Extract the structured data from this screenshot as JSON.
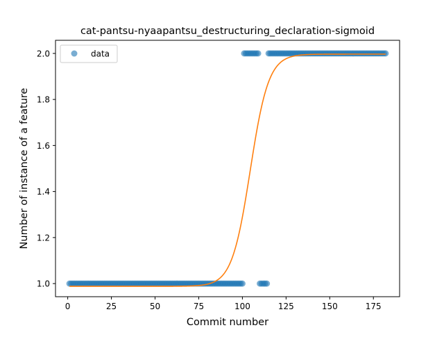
{
  "chart_data": {
    "type": "scatter",
    "title": "cat-pantsu-nyaapantsu_destructuring_declaration-sigmoid",
    "xlabel": "Commit number",
    "ylabel": "Number of instance of a feature",
    "xlim": [
      -7,
      190
    ],
    "ylim": [
      0.943,
      2.057
    ],
    "xticks": [
      0,
      25,
      50,
      75,
      100,
      125,
      150,
      175
    ],
    "yticks": [
      1.0,
      1.2,
      1.4,
      1.6,
      1.8,
      2.0
    ],
    "ytick_labels": [
      "1.0",
      "1.2",
      "1.4",
      "1.6",
      "1.8",
      "2.0"
    ],
    "grid": false,
    "legend": {
      "placement": "top-left",
      "entries": [
        "data"
      ]
    },
    "colors": {
      "data": "#1f77b4",
      "fit": "#ff7f0e"
    },
    "series": [
      {
        "name": "data",
        "kind": "points",
        "segments": [
          {
            "x_from": 1,
            "x_to": 100,
            "y": 1
          },
          {
            "x_from": 101,
            "x_to": 109,
            "y": 2
          },
          {
            "x_from": 110,
            "x_to": 114,
            "y": 1
          },
          {
            "x_from": 115,
            "x_to": 182,
            "y": 2
          }
        ]
      },
      {
        "kind": "sigmoid-fit",
        "x_range": [
          1,
          182
        ],
        "lower": 0.988,
        "upper": 1.997,
        "midpoint": 104.5,
        "slope": 0.19
      }
    ]
  }
}
